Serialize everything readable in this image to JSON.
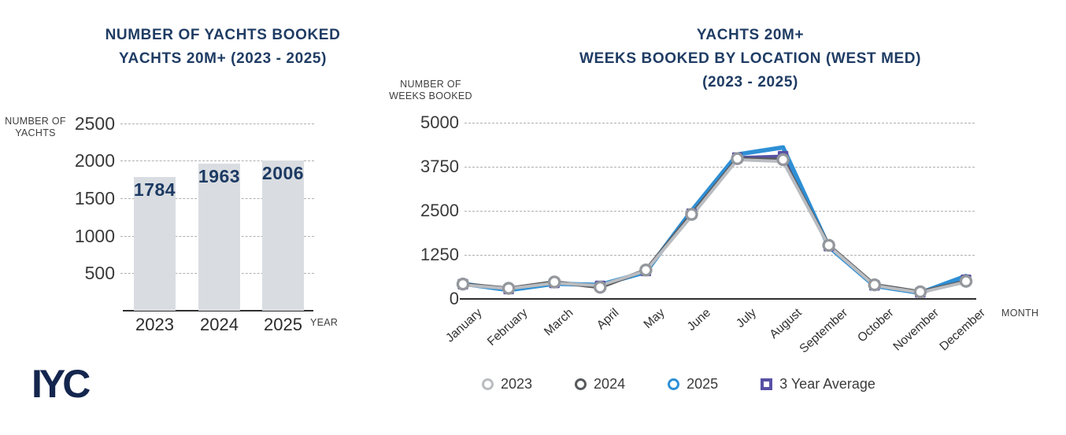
{
  "page": {
    "background": "#ffffff"
  },
  "logo": {
    "text": "IYC",
    "color": "#14264e"
  },
  "colors": {
    "title_navy": "#1f3c64",
    "axis_text": "#3a3a3a",
    "gridline": "#b0b0b0",
    "axis_line": "#2f2f2f",
    "bar_fill": "#d9dde1",
    "bar_value_text": "#1d3a63",
    "marker_ring": "#94989d",
    "legend_text": "#3b3b3b"
  },
  "chart_data": [
    {
      "type": "bar",
      "title": "NUMBER OF YACHTS BOOKED",
      "subtitle": "YACHTS 20M+ (2023 - 2025)",
      "ylabel": "NUMBER OF YACHTS",
      "ylabel_lines": [
        "NUMBER OF",
        "YACHTS"
      ],
      "xlabel": "YEAR",
      "categories": [
        "2023",
        "2024",
        "2025"
      ],
      "values": [
        1784,
        1963,
        2006
      ],
      "yticks": [
        500,
        1000,
        1500,
        2000,
        2500
      ],
      "ylim": [
        0,
        2500
      ],
      "grid": true,
      "legend_position": "none"
    },
    {
      "type": "line",
      "title": "YACHTS 20M+",
      "subtitle": "WEEKS BOOKED BY LOCATION (WEST MED)",
      "subtitle2": "(2023 - 2025)",
      "ylabel": "NUMBER OF WEEKS BOOKED",
      "ylabel_lines": [
        "NUMBER OF",
        "WEEKS BOOKED"
      ],
      "xlabel": "MONTH",
      "categories": [
        "January",
        "February",
        "March",
        "April",
        "May",
        "June",
        "July",
        "August",
        "September",
        "October",
        "November",
        "December"
      ],
      "yticks": [
        0,
        1250,
        2500,
        3750,
        5000
      ],
      "ylim": [
        0,
        5000
      ],
      "grid": true,
      "legend_position": "bottom",
      "series": [
        {
          "name": "2023",
          "color": "#b9bcc0",
          "marker": "circle",
          "values": [
            400,
            290,
            450,
            380,
            800,
            2350,
            3950,
            3900,
            1500,
            380,
            180,
            480
          ]
        },
        {
          "name": "2024",
          "color": "#58595c",
          "marker": "circle",
          "values": [
            420,
            300,
            480,
            330,
            820,
            2400,
            3980,
            3950,
            1520,
            400,
            200,
            500
          ]
        },
        {
          "name": "2025",
          "color": "#2e8fd5",
          "marker": "circle",
          "values": [
            430,
            250,
            430,
            400,
            760,
            2500,
            4100,
            4300,
            1480,
            370,
            170,
            650
          ]
        },
        {
          "name": "3 Year Average",
          "color": "#5751a5",
          "marker": "square",
          "values": [
            417,
            280,
            453,
            370,
            793,
            2417,
            4010,
            4050,
            1500,
            383,
            183,
            543
          ]
        }
      ]
    }
  ]
}
